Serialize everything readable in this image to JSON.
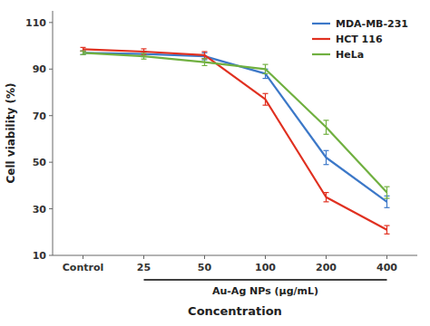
{
  "chart_data": {
    "type": "line",
    "categories": [
      "Control",
      "25",
      "50",
      "100",
      "200",
      "400"
    ],
    "series": [
      {
        "name": "MDA-MB-231",
        "color": "#3C78C8",
        "values": [
          97,
          96.5,
          95.5,
          88,
          52,
          33
        ],
        "errors": [
          0.8,
          1.2,
          1.5,
          2.0,
          3.0,
          2.5
        ]
      },
      {
        "name": "HCT 116",
        "color": "#E03020",
        "values": [
          98.5,
          97.5,
          96,
          77,
          35,
          21
        ],
        "errors": [
          0.8,
          1.2,
          1.5,
          2.5,
          2.0,
          1.8
        ]
      },
      {
        "name": "HeLa",
        "color": "#70B040",
        "values": [
          97,
          95.5,
          93,
          90,
          65,
          37
        ],
        "errors": [
          0.8,
          1.2,
          1.5,
          2.0,
          3.0,
          2.5
        ]
      }
    ],
    "ylabel": "Cell viability (%)",
    "xlabel": "Concentration",
    "annotations": [
      {
        "text": "Au-Ag NPs (μg/mL)",
        "x": [
          "25",
          "400"
        ]
      }
    ],
    "ylim": [
      10,
      115
    ],
    "yticks": [
      10,
      30,
      50,
      70,
      90,
      110
    ],
    "grid": false,
    "legend": "upper right"
  }
}
